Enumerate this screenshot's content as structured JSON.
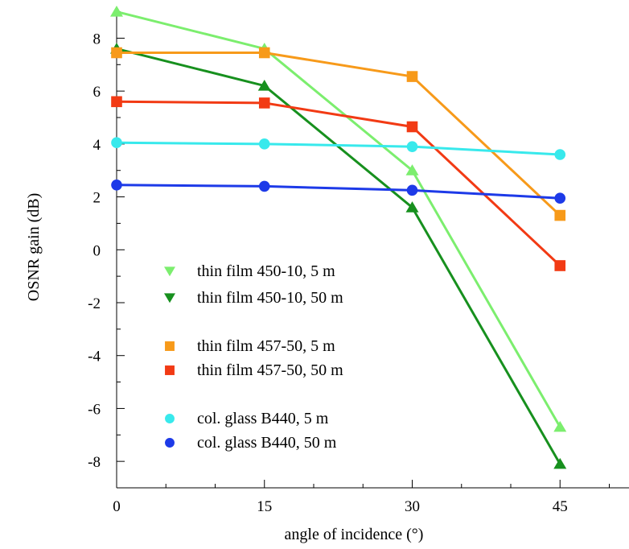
{
  "chart_data": {
    "type": "line",
    "xlabel": "angle of incidence  (°)",
    "ylabel": "OSNR gain  (dB)",
    "xlim": [
      0,
      52
    ],
    "ylim": [
      -9,
      9.2
    ],
    "xticks": [
      0,
      15,
      30,
      45
    ],
    "xtick_labels": [
      "0",
      "15",
      "30",
      "45"
    ],
    "yticks": [
      -8,
      -6,
      -4,
      -2,
      0,
      2,
      4,
      6,
      8
    ],
    "ytick_labels": [
      "-8",
      "-6",
      "-4",
      "-2",
      "0",
      "2",
      "4",
      "6",
      "8"
    ],
    "grid": false,
    "legend_position": "bottom-left",
    "x": [
      0,
      15,
      30,
      45
    ],
    "series": [
      {
        "name": "thin film 450-10, 5 m",
        "marker": "triangle-down",
        "color": "#7cee6e",
        "values": [
          9.0,
          7.6,
          3.0,
          -6.7
        ]
      },
      {
        "name": "thin film 450-10, 50 m",
        "marker": "triangle-down",
        "color": "#17901e",
        "values": [
          7.6,
          6.2,
          1.6,
          -8.1
        ]
      },
      {
        "name": "thin film 457-50, 5 m",
        "marker": "square",
        "color": "#f79a1a",
        "values": [
          7.45,
          7.45,
          6.55,
          1.3
        ]
      },
      {
        "name": "thin film 457-50, 50 m",
        "marker": "square",
        "color": "#f23a14",
        "values": [
          5.6,
          5.55,
          4.65,
          -0.6
        ]
      },
      {
        "name": "col. glass B440, 5 m",
        "marker": "circle",
        "color": "#38e9ec",
        "values": [
          4.05,
          4.0,
          3.9,
          3.6
        ]
      },
      {
        "name": "col. glass B440, 50 m",
        "marker": "circle",
        "color": "#1d3ae8",
        "values": [
          2.45,
          2.4,
          2.25,
          1.95
        ]
      }
    ]
  }
}
